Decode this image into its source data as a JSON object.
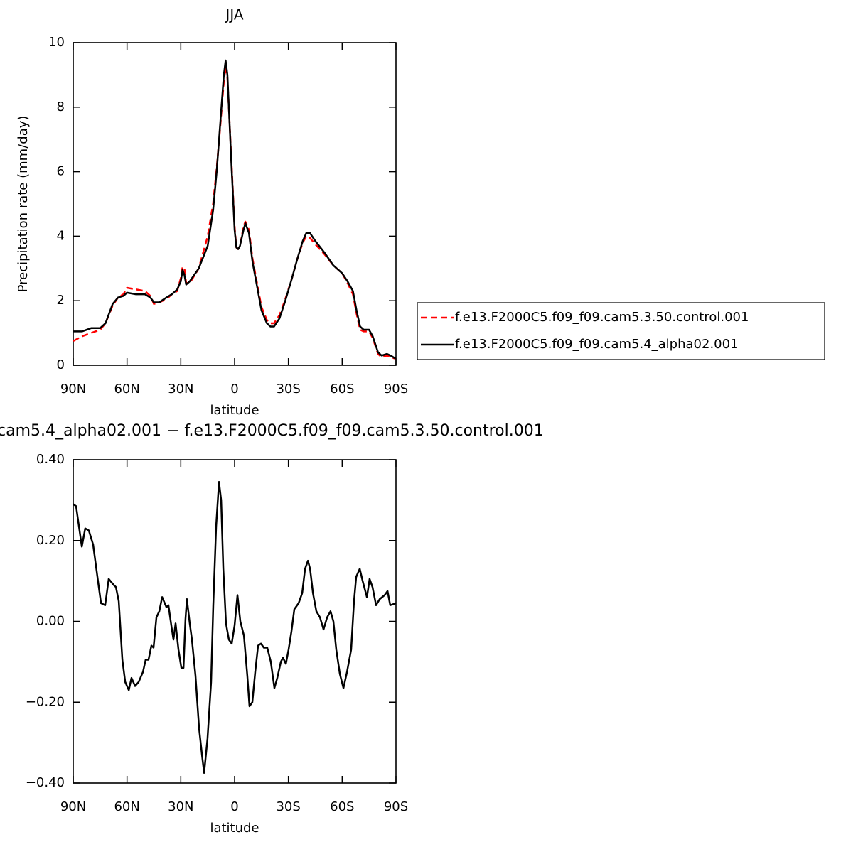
{
  "chart_data": [
    {
      "type": "line",
      "title": "JJA",
      "xlabel": "latitude",
      "ylabel": "Precipitation rate (mm/day)",
      "xlim": [
        90,
        -90
      ],
      "xticks": [
        {
          "value": 90,
          "label": "90N"
        },
        {
          "value": 60,
          "label": "60N"
        },
        {
          "value": 30,
          "label": "30N"
        },
        0,
        {
          "value": -30,
          "label": "30S"
        },
        {
          "value": -60,
          "label": "60S"
        },
        {
          "value": -90,
          "label": "90S"
        }
      ],
      "ylim": [
        0,
        10
      ],
      "yticks": [
        0,
        2,
        4,
        6,
        8,
        10
      ],
      "legend_position": "right",
      "x": [
        90,
        85,
        80,
        75,
        72,
        68,
        65,
        62,
        60,
        55,
        50,
        47,
        45,
        42,
        38,
        35,
        32,
        30,
        29,
        28,
        27,
        25,
        20,
        15,
        12,
        10,
        8,
        6,
        5,
        4,
        2,
        0,
        -1,
        -2,
        -3,
        -5,
        -6,
        -8,
        -10,
        -13,
        -15,
        -18,
        -20,
        -22,
        -25,
        -28,
        -32,
        -35,
        -38,
        -40,
        -42,
        -45,
        -50,
        -55,
        -60,
        -63,
        -66,
        -68,
        -70,
        -72,
        -75,
        -77,
        -80,
        -82,
        -85,
        -87,
        -90
      ],
      "series": [
        {
          "name": "f.e13.F2000C5.f09_f09.cam5.3.50.control.001",
          "color": "#ff0000",
          "linestyle": "dashed",
          "values": [
            0.75,
            0.9,
            1.0,
            1.1,
            1.3,
            1.85,
            2.1,
            2.2,
            2.4,
            2.35,
            2.3,
            2.15,
            1.9,
            1.95,
            2.05,
            2.2,
            2.3,
            2.7,
            3.05,
            3.0,
            2.55,
            2.55,
            3.0,
            4.0,
            5.0,
            6.1,
            7.4,
            8.8,
            9.25,
            8.9,
            6.6,
            4.3,
            3.65,
            3.6,
            3.7,
            4.3,
            4.45,
            4.2,
            3.3,
            2.4,
            1.8,
            1.4,
            1.3,
            1.3,
            1.55,
            2.0,
            2.7,
            3.3,
            3.8,
            4.0,
            3.95,
            3.75,
            3.45,
            3.1,
            2.85,
            2.55,
            2.2,
            1.6,
            1.1,
            1.05,
            1.05,
            0.85,
            0.35,
            0.25,
            0.3,
            0.25,
            0.2
          ]
        },
        {
          "name": "f.e13.F2000C5.f09_f09.cam5.4_alpha02.001",
          "color": "#000000",
          "linestyle": "solid",
          "values": [
            1.05,
            1.05,
            1.15,
            1.15,
            1.3,
            1.9,
            2.1,
            2.15,
            2.25,
            2.2,
            2.2,
            2.1,
            1.95,
            1.95,
            2.1,
            2.2,
            2.35,
            2.6,
            2.95,
            2.8,
            2.5,
            2.6,
            3.0,
            3.7,
            4.8,
            6.0,
            7.5,
            9.0,
            9.45,
            9.0,
            6.5,
            4.2,
            3.65,
            3.6,
            3.7,
            4.2,
            4.4,
            4.1,
            3.2,
            2.3,
            1.7,
            1.3,
            1.2,
            1.2,
            1.45,
            1.95,
            2.7,
            3.3,
            3.85,
            4.1,
            4.1,
            3.85,
            3.5,
            3.1,
            2.85,
            2.6,
            2.3,
            1.7,
            1.2,
            1.1,
            1.1,
            0.9,
            0.4,
            0.3,
            0.35,
            0.3,
            0.2
          ]
        }
      ]
    },
    {
      "type": "line",
      "title": "cam5.4_alpha02.001 − f.e13.F2000C5.f09_f09.cam5.3.50.control.001",
      "xlabel": "latitude",
      "xlim": [
        90,
        -90
      ],
      "xticks": [
        {
          "value": 90,
          "label": "90N"
        },
        {
          "value": 60,
          "label": "60N"
        },
        {
          "value": 30,
          "label": "30N"
        },
        0,
        {
          "value": -30,
          "label": "30S"
        },
        {
          "value": -60,
          "label": "60S"
        },
        {
          "value": -90,
          "label": "90S"
        }
      ],
      "ylim": [
        -0.4,
        0.4
      ],
      "yticks": [
        {
          "value": -0.4,
          "label": "−0.40"
        },
        {
          "value": -0.2,
          "label": "−0.20"
        },
        {
          "value": 0,
          "label": "0.00"
        },
        {
          "value": 0.2,
          "label": "0.20"
        },
        {
          "value": 0.4,
          "label": "0.40"
        }
      ],
      "x": [
        90,
        88.4,
        86,
        85.2,
        83.3,
        81.3,
        78.9,
        76.5,
        74.5,
        72.2,
        70.2,
        67.4,
        66.2,
        64.6,
        62.6,
        61,
        59,
        57.5,
        55.5,
        53.5,
        51.1,
        49.6,
        48,
        46.4,
        45.2,
        43.6,
        42,
        40.4,
        38,
        36.9,
        35.3,
        34.1,
        32.9,
        31.3,
        29.7,
        28.5,
        27.4,
        26.6,
        25,
        23.8,
        21.8,
        19.8,
        18.2,
        17,
        15.1,
        13.1,
        11.9,
        10.3,
        8.7,
        7.5,
        6.3,
        4.8,
        3.2,
        1.6,
        0,
        -1.6,
        -3.2,
        -5.2,
        -7.1,
        -8.3,
        -9.9,
        -11.5,
        -13.1,
        -14.7,
        -16.3,
        -18.2,
        -20.2,
        -22.2,
        -23.8,
        -25.8,
        -27,
        -28.6,
        -30.1,
        -31.7,
        -33.3,
        -35.7,
        -37.7,
        -39.3,
        -40.9,
        -42.1,
        -43.7,
        -45.6,
        -47.6,
        -49.6,
        -51.6,
        -53.5,
        -55.1,
        -56.7,
        -58.7,
        -60.7,
        -62.7,
        -65,
        -66.6,
        -67.8,
        -69.8,
        -71.4,
        -73.8,
        -75.3,
        -76.9,
        -78.9,
        -80.9,
        -83.7,
        -85.3,
        -86.8,
        -90
      ],
      "series": [
        {
          "color": "#000000",
          "linestyle": "solid",
          "values": [
            0.29,
            0.285,
            0.21,
            0.185,
            0.23,
            0.225,
            0.19,
            0.11,
            0.045,
            0.04,
            0.105,
            0.09,
            0.085,
            0.05,
            -0.095,
            -0.15,
            -0.17,
            -0.14,
            -0.16,
            -0.15,
            -0.125,
            -0.095,
            -0.095,
            -0.06,
            -0.065,
            0.01,
            0.025,
            0.06,
            0.035,
            0.04,
            -0.01,
            -0.045,
            -0.005,
            -0.07,
            -0.115,
            -0.115,
            0.005,
            0.055,
            -0.005,
            -0.045,
            -0.135,
            -0.265,
            -0.33,
            -0.375,
            -0.29,
            -0.15,
            0.04,
            0.235,
            0.345,
            0.3,
            0.13,
            -0.005,
            -0.045,
            -0.055,
            -0.01,
            0.065,
            0,
            -0.035,
            -0.135,
            -0.21,
            -0.2,
            -0.125,
            -0.06,
            -0.055,
            -0.065,
            -0.065,
            -0.1,
            -0.165,
            -0.14,
            -0.1,
            -0.09,
            -0.105,
            -0.07,
            -0.025,
            0.03,
            0.045,
            0.07,
            0.13,
            0.15,
            0.13,
            0.07,
            0.025,
            0.01,
            -0.02,
            0.01,
            0.025,
            0,
            -0.07,
            -0.13,
            -0.165,
            -0.125,
            -0.07,
            0.05,
            0.11,
            0.13,
            0.1,
            0.06,
            0.105,
            0.085,
            0.04,
            0.055,
            0.065,
            0.075,
            0.04,
            0.045
          ]
        }
      ]
    }
  ]
}
